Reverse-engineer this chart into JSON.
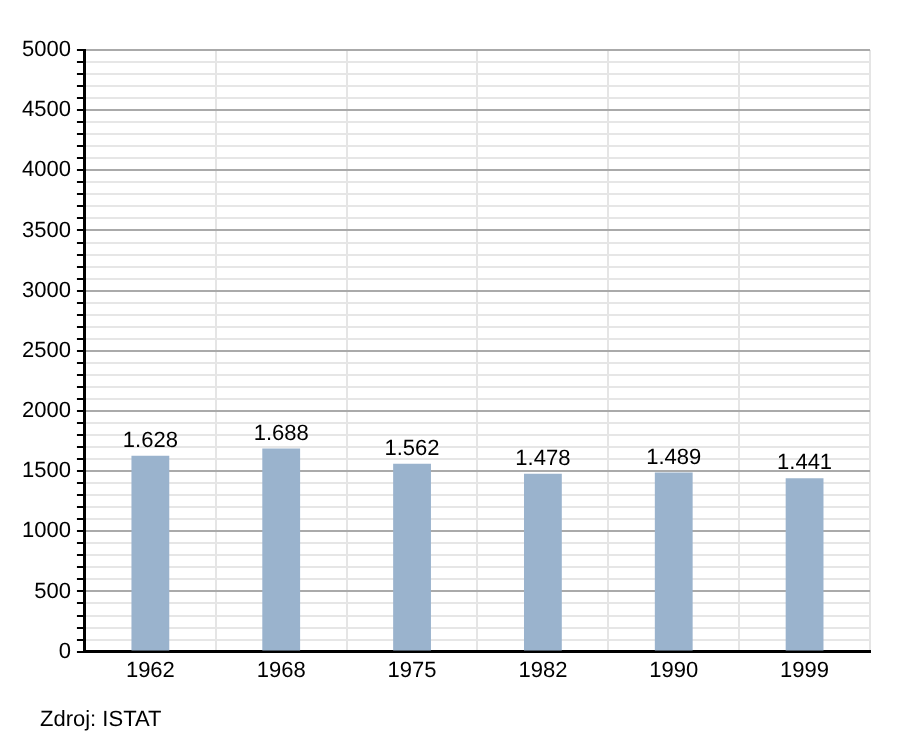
{
  "chart_data": {
    "type": "bar",
    "categories": [
      "1962",
      "1968",
      "1975",
      "1982",
      "1990",
      "1999"
    ],
    "values": [
      1628,
      1688,
      1562,
      1478,
      1489,
      1441
    ],
    "value_labels": [
      "1.628",
      "1.688",
      "1.562",
      "1.478",
      "1.489",
      "1.441"
    ],
    "color": "#9ab3cd",
    "ylim": [
      0,
      5000
    ],
    "yticks": [
      0,
      {
        "value": 100,
        "label": null
      },
      {
        "value": 200,
        "label": null
      },
      {
        "value": 300,
        "label": null
      },
      {
        "value": 400,
        "label": null
      },
      500,
      {
        "value": 600,
        "label": null
      },
      {
        "value": 700,
        "label": null
      },
      {
        "value": 800,
        "label": null
      },
      {
        "value": 900,
        "label": null
      },
      1000,
      {
        "value": 1100,
        "label": null
      },
      {
        "value": 1200,
        "label": null
      },
      {
        "value": 1300,
        "label": null
      },
      {
        "value": 1400,
        "label": null
      },
      1500,
      {
        "value": 1600,
        "label": null
      },
      {
        "value": 1700,
        "label": null
      },
      {
        "value": 1800,
        "label": null
      },
      {
        "value": 1900,
        "label": null
      },
      2000,
      {
        "value": 2100,
        "label": null
      },
      {
        "value": 2200,
        "label": null
      },
      {
        "value": 2300,
        "label": null
      },
      {
        "value": 2400,
        "label": null
      },
      2500,
      {
        "value": 2600,
        "label": null
      },
      {
        "value": 2700,
        "label": null
      },
      {
        "value": 2800,
        "label": null
      },
      {
        "value": 2900,
        "label": null
      },
      3000,
      {
        "value": 3100,
        "label": null
      },
      {
        "value": 3200,
        "label": null
      },
      {
        "value": 3300,
        "label": null
      },
      {
        "value": 3400,
        "label": null
      },
      3500,
      {
        "value": 3600,
        "label": null
      },
      {
        "value": 3700,
        "label": null
      },
      {
        "value": 3800,
        "label": null
      },
      {
        "value": 3900,
        "label": null
      },
      4000,
      {
        "value": 4100,
        "label": null
      },
      {
        "value": 4200,
        "label": null
      },
      {
        "value": 4300,
        "label": null
      },
      {
        "value": 4400,
        "label": null
      },
      4500,
      {
        "value": 4600,
        "label": null
      },
      {
        "value": 4700,
        "label": null
      },
      {
        "value": 4800,
        "label": null
      },
      {
        "value": 4900,
        "label": null
      },
      5000
    ],
    "grid": true,
    "legend": false,
    "annotations": [
      "Zdroj: ISTAT"
    ]
  }
}
